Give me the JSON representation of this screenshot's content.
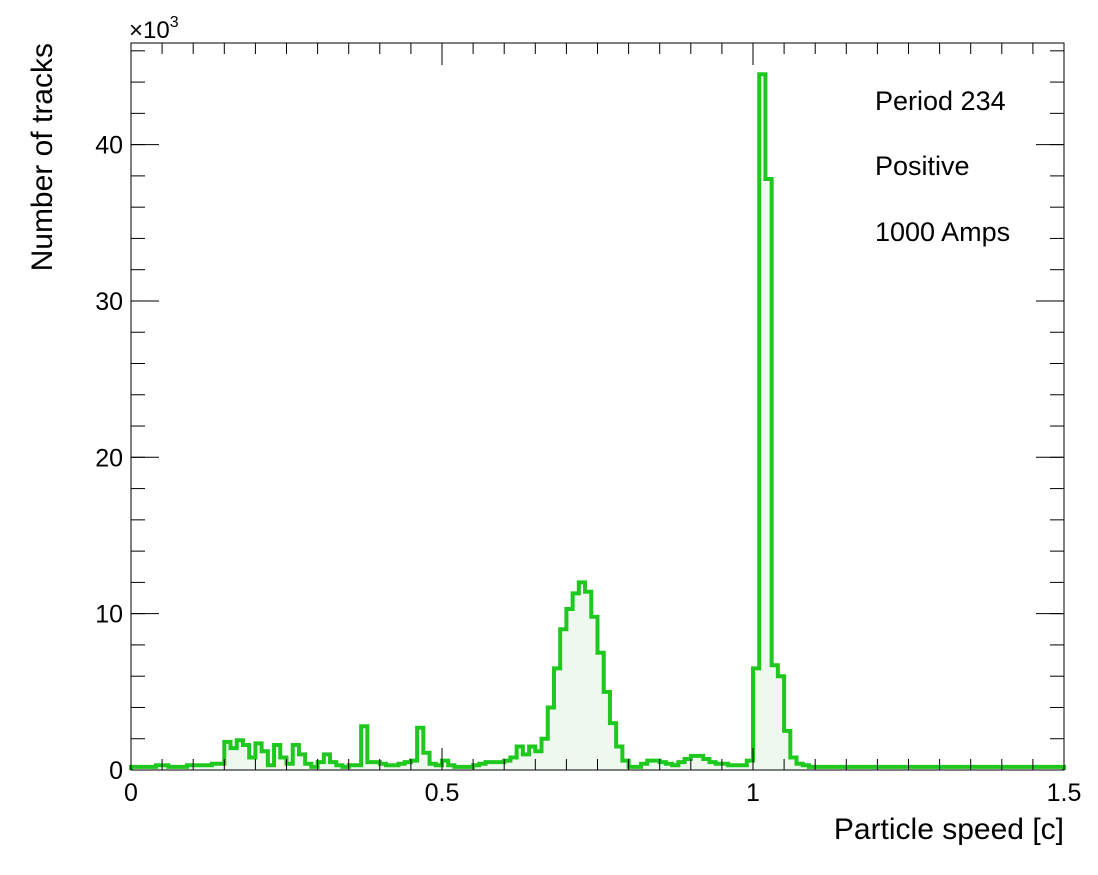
{
  "chart_data": {
    "type": "area",
    "xlabel": "Particle speed [c]",
    "ylabel": "Number of tracks",
    "y_multiplier": "×10",
    "y_multiplier_exponent": "3",
    "xlim": [
      0,
      1.5
    ],
    "ylim": [
      0,
      46.5
    ],
    "x_ticks": [
      0,
      0.5,
      1,
      1.5
    ],
    "x_tick_labels": [
      "0",
      "0.5",
      "1",
      "1.5"
    ],
    "y_ticks": [
      0,
      10,
      20,
      30,
      40
    ],
    "y_tick_labels": [
      "0",
      "10",
      "20",
      "30",
      "40"
    ],
    "grid": false,
    "legend_position": "top-right",
    "annotations": [
      "Period 234",
      "Positive",
      "1000 Amps"
    ],
    "series": [
      {
        "line_color": "#1ec81e",
        "fill_color": "#eef8ee",
        "bin_width": 0.01,
        "x_start": 0,
        "values": [
          0.2,
          0.2,
          0.2,
          0.2,
          0.3,
          0.3,
          0.2,
          0.2,
          0.2,
          0.3,
          0.3,
          0.3,
          0.3,
          0.4,
          0.4,
          1.8,
          1.4,
          1.9,
          1.6,
          0.8,
          1.7,
          1.2,
          0.3,
          1.6,
          0.8,
          0.4,
          1.6,
          1.0,
          0.4,
          0.2,
          0.5,
          1.0,
          0.5,
          0.3,
          0.2,
          0.3,
          0.3,
          2.8,
          0.5,
          0.5,
          0.4,
          0.3,
          0.3,
          0.4,
          0.5,
          0.6,
          2.7,
          1.1,
          0.4,
          0.3,
          0.6,
          0.3,
          0.2,
          0.2,
          0.2,
          0.3,
          0.4,
          0.5,
          0.5,
          0.5,
          0.6,
          0.8,
          1.5,
          1.0,
          1.5,
          1.2,
          2.0,
          4.0,
          6.5,
          9.0,
          10.3,
          11.3,
          12.0,
          11.4,
          9.8,
          7.5,
          5.0,
          3.0,
          1.5,
          0.6,
          0.2,
          0.2,
          0.4,
          0.6,
          0.6,
          0.5,
          0.4,
          0.3,
          0.5,
          0.7,
          0.9,
          0.9,
          0.7,
          0.5,
          0.4,
          0.4,
          0.3,
          0.3,
          0.3,
          0.6,
          6.5,
          44.5,
          37.8,
          6.7,
          6.0,
          2.5,
          0.8,
          0.4,
          0.3,
          0.2,
          0.2,
          0.2,
          0.2,
          0.2,
          0.2,
          0.2,
          0.2,
          0.2,
          0.2,
          0.2,
          0.2,
          0.2,
          0.2,
          0.2,
          0.2,
          0.2,
          0.2,
          0.2,
          0.2,
          0.2,
          0.2,
          0.2,
          0.2,
          0.2,
          0.2,
          0.2,
          0.2,
          0.2,
          0.2,
          0.2,
          0.2,
          0.2,
          0.2,
          0.2,
          0.2,
          0.2,
          0.2,
          0.2,
          0.2,
          0.2
        ]
      }
    ]
  }
}
